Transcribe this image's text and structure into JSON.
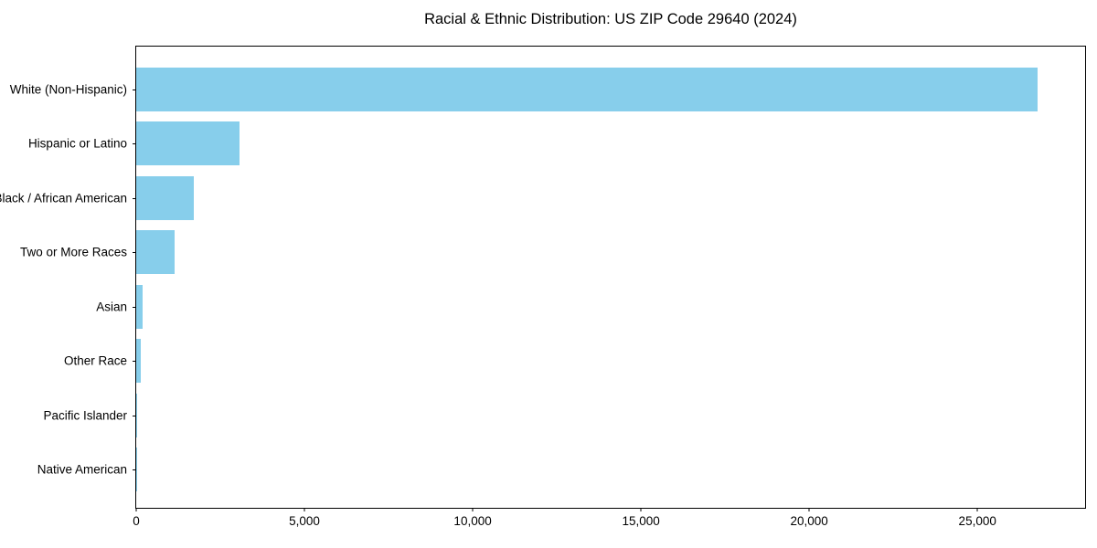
{
  "chart_data": {
    "type": "bar",
    "orientation": "horizontal",
    "title": "Racial & Ethnic Distribution: US ZIP Code 29640 (2024)",
    "categories": [
      "White (Non-Hispanic)",
      "Hispanic or Latino",
      "Black / African American",
      "Two or More Races",
      "Asian",
      "Other Race",
      "Pacific Islander",
      "Native American"
    ],
    "values": [
      26800,
      3060,
      1700,
      1130,
      200,
      130,
      25,
      10
    ],
    "bar_color": "#87CEEB",
    "xlim": [
      0,
      28200
    ],
    "xticks": [
      {
        "value": 0,
        "label": "0"
      },
      {
        "value": 5000,
        "label": "5,000"
      },
      {
        "value": 10000,
        "label": "10,000"
      },
      {
        "value": 15000,
        "label": "15,000"
      },
      {
        "value": 20000,
        "label": "20,000"
      },
      {
        "value": 25000,
        "label": "25,000"
      }
    ],
    "xlabel": "",
    "ylabel": "",
    "grid": false,
    "legend": null
  }
}
